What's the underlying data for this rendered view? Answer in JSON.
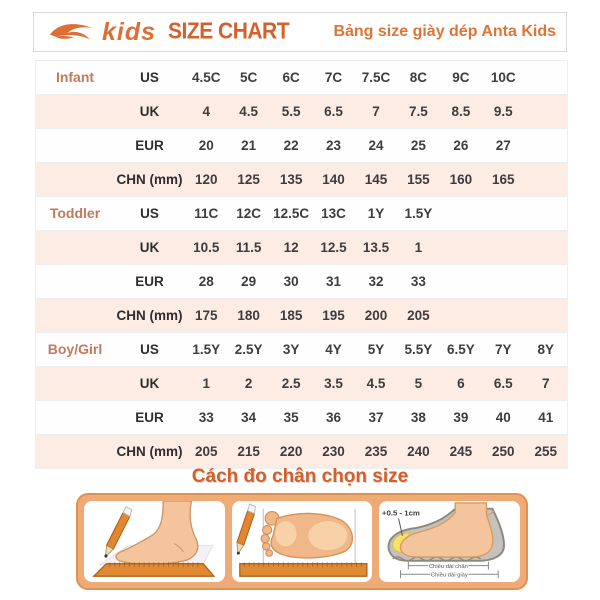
{
  "header": {
    "brand": "kids",
    "title": "SIZE CHART",
    "subtitle": "Bảng size giày dép Anta Kids"
  },
  "colors": {
    "accent_orange": "#dc6f35",
    "row_pink": "#fcece4",
    "group_label_terracotta": "#c4795a",
    "panel_orange": "#eeab78"
  },
  "table": {
    "sections": [
      {
        "group": "Infant",
        "rows": [
          {
            "unit": "US",
            "values": [
              "4.5C",
              "5C",
              "6C",
              "7C",
              "7.5C",
              "8C",
              "9C",
              "10C"
            ]
          },
          {
            "unit": "UK",
            "values": [
              "4",
              "4.5",
              "5.5",
              "6.5",
              "7",
              "7.5",
              "8.5",
              "9.5"
            ]
          },
          {
            "unit": "EUR",
            "values": [
              "20",
              "21",
              "22",
              "23",
              "24",
              "25",
              "26",
              "27"
            ]
          },
          {
            "unit": "CHN (mm)",
            "values": [
              "120",
              "125",
              "135",
              "140",
              "145",
              "155",
              "160",
              "165"
            ]
          }
        ]
      },
      {
        "group": "Toddler",
        "rows": [
          {
            "unit": "US",
            "values": [
              "11C",
              "12C",
              "12.5C",
              "13C",
              "1Y",
              "1.5Y"
            ]
          },
          {
            "unit": "UK",
            "values": [
              "10.5",
              "11.5",
              "12",
              "12.5",
              "13.5",
              "1"
            ]
          },
          {
            "unit": "EUR",
            "values": [
              "28",
              "29",
              "30",
              "31",
              "32",
              "33"
            ]
          },
          {
            "unit": "CHN (mm)",
            "values": [
              "175",
              "180",
              "185",
              "195",
              "200",
              "205"
            ]
          }
        ]
      },
      {
        "group": "Boy/Girl",
        "rows": [
          {
            "unit": "US",
            "values": [
              "1.5Y",
              "2.5Y",
              "3Y",
              "4Y",
              "5Y",
              "5.5Y",
              "6.5Y",
              "7Y",
              "8Y"
            ]
          },
          {
            "unit": "UK",
            "values": [
              "1",
              "2",
              "2.5",
              "3.5",
              "4.5",
              "5",
              "6",
              "6.5",
              "7"
            ]
          },
          {
            "unit": "EUR",
            "values": [
              "33",
              "34",
              "35",
              "36",
              "37",
              "38",
              "39",
              "40",
              "41"
            ]
          },
          {
            "unit": "CHN (mm)",
            "values": [
              "205",
              "215",
              "220",
              "230",
              "235",
              "240",
              "245",
              "250",
              "255"
            ]
          }
        ]
      }
    ]
  },
  "measure": {
    "title": "Cách đo chân chọn size",
    "fit_allowance": "+0.5 - 1cm",
    "foot_length_label": "Chiều dài chân",
    "shoe_length_label": "Chiều dài giày"
  }
}
